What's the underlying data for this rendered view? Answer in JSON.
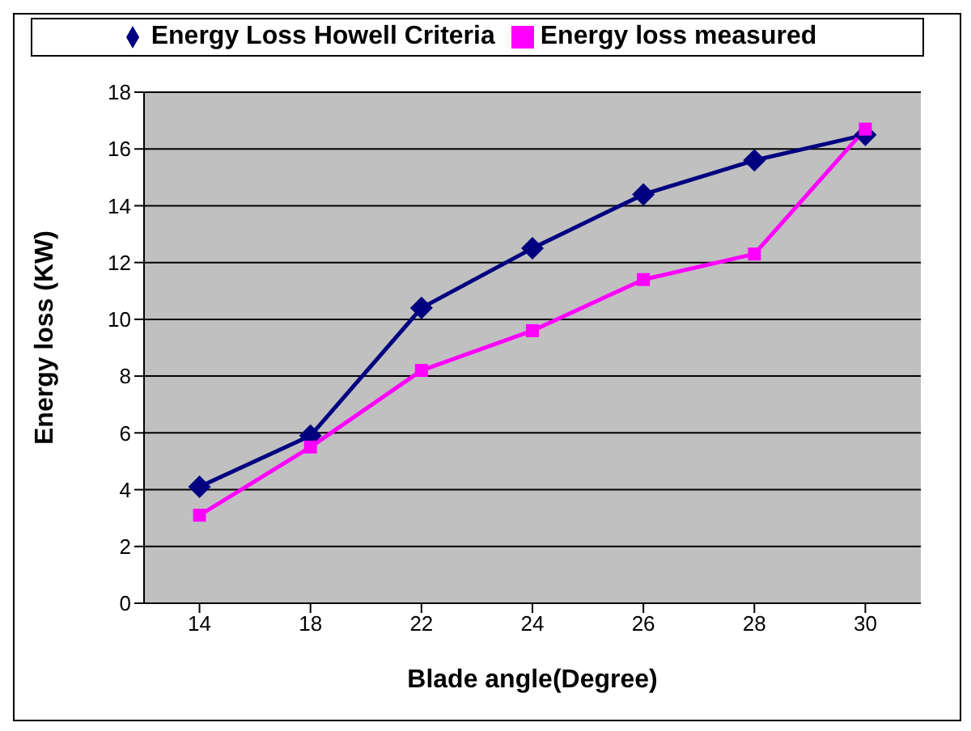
{
  "chart_data": {
    "type": "line",
    "xlabel": "Blade angle(Degree)",
    "ylabel": "Energy loss (KW)",
    "categories": [
      "14",
      "18",
      "22",
      "24",
      "26",
      "28",
      "30"
    ],
    "series": [
      {
        "name": "Energy Loss Howell Criteria",
        "color": "#000080",
        "marker": "diamond",
        "values": [
          4.1,
          5.9,
          10.4,
          12.5,
          14.4,
          15.6,
          16.5
        ]
      },
      {
        "name": "Energy loss measured",
        "color": "#ff00ff",
        "marker": "square",
        "values": [
          3.1,
          5.5,
          8.2,
          9.6,
          11.4,
          12.3,
          16.7
        ]
      }
    ],
    "ylim": [
      0,
      18
    ],
    "yticks": [
      0,
      2,
      4,
      6,
      8,
      10,
      12,
      14,
      16,
      18
    ],
    "grid": "y",
    "legend": "top"
  }
}
